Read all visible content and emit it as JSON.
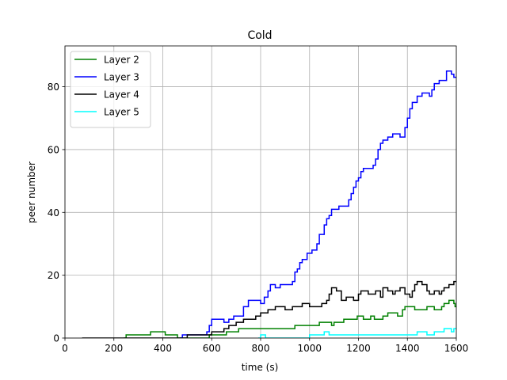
{
  "chart_data": {
    "type": "line",
    "title": "Cold",
    "xlabel": "time (s)",
    "ylabel": "peer number",
    "xlim": [
      0,
      1600
    ],
    "ylim": [
      0,
      93
    ],
    "xticks": [
      0,
      200,
      400,
      600,
      800,
      1000,
      1200,
      1400,
      1600
    ],
    "yticks": [
      0,
      20,
      40,
      60,
      80
    ],
    "grid": true,
    "legend_position": "top-left",
    "series": [
      {
        "name": "Layer 2",
        "color": "#008000",
        "points": [
          [
            240,
            0
          ],
          [
            250,
            1
          ],
          [
            350,
            2
          ],
          [
            410,
            1
          ],
          [
            460,
            0
          ],
          [
            590,
            1
          ],
          [
            660,
            2
          ],
          [
            710,
            3
          ],
          [
            940,
            4
          ],
          [
            1040,
            5
          ],
          [
            1090,
            4
          ],
          [
            1100,
            5
          ],
          [
            1140,
            6
          ],
          [
            1180,
            6
          ],
          [
            1195,
            7
          ],
          [
            1220,
            6
          ],
          [
            1250,
            7
          ],
          [
            1265,
            6
          ],
          [
            1300,
            7
          ],
          [
            1320,
            8
          ],
          [
            1360,
            7
          ],
          [
            1380,
            9
          ],
          [
            1390,
            10
          ],
          [
            1410,
            10
          ],
          [
            1430,
            9
          ],
          [
            1480,
            10
          ],
          [
            1510,
            9
          ],
          [
            1540,
            10
          ],
          [
            1550,
            11
          ],
          [
            1570,
            12
          ],
          [
            1590,
            11
          ],
          [
            1595,
            10
          ]
        ]
      },
      {
        "name": "Layer 3",
        "color": "#0000ff",
        "points": [
          [
            470,
            0
          ],
          [
            480,
            1
          ],
          [
            580,
            2
          ],
          [
            590,
            4
          ],
          [
            600,
            6
          ],
          [
            650,
            5
          ],
          [
            670,
            6
          ],
          [
            690,
            7
          ],
          [
            730,
            10
          ],
          [
            750,
            12
          ],
          [
            800,
            11
          ],
          [
            815,
            13
          ],
          [
            830,
            15
          ],
          [
            840,
            17
          ],
          [
            860,
            16
          ],
          [
            880,
            17
          ],
          [
            920,
            17
          ],
          [
            930,
            18
          ],
          [
            940,
            21
          ],
          [
            950,
            22
          ],
          [
            960,
            24
          ],
          [
            970,
            25
          ],
          [
            990,
            27
          ],
          [
            1010,
            28
          ],
          [
            1030,
            30
          ],
          [
            1040,
            33
          ],
          [
            1060,
            36
          ],
          [
            1070,
            38
          ],
          [
            1080,
            39
          ],
          [
            1090,
            41
          ],
          [
            1120,
            42
          ],
          [
            1160,
            44
          ],
          [
            1170,
            46
          ],
          [
            1180,
            48
          ],
          [
            1190,
            50
          ],
          [
            1200,
            51
          ],
          [
            1210,
            53
          ],
          [
            1220,
            54
          ],
          [
            1240,
            54
          ],
          [
            1260,
            55
          ],
          [
            1270,
            57
          ],
          [
            1280,
            60
          ],
          [
            1290,
            62
          ],
          [
            1300,
            63
          ],
          [
            1320,
            64
          ],
          [
            1340,
            65
          ],
          [
            1370,
            64
          ],
          [
            1390,
            67
          ],
          [
            1400,
            70
          ],
          [
            1410,
            73
          ],
          [
            1420,
            75
          ],
          [
            1440,
            77
          ],
          [
            1460,
            78
          ],
          [
            1490,
            77
          ],
          [
            1500,
            79
          ],
          [
            1510,
            81
          ],
          [
            1530,
            82
          ],
          [
            1560,
            85
          ],
          [
            1580,
            84
          ],
          [
            1590,
            83
          ]
        ]
      },
      {
        "name": "Layer 4",
        "color": "#000000",
        "points": [
          [
            70,
            0
          ],
          [
            500,
            1
          ],
          [
            560,
            1
          ],
          [
            600,
            2
          ],
          [
            630,
            2
          ],
          [
            650,
            3
          ],
          [
            670,
            4
          ],
          [
            700,
            5
          ],
          [
            730,
            6
          ],
          [
            780,
            7
          ],
          [
            800,
            8
          ],
          [
            830,
            9
          ],
          [
            860,
            10
          ],
          [
            900,
            9
          ],
          [
            930,
            10
          ],
          [
            970,
            11
          ],
          [
            1000,
            10
          ],
          [
            1050,
            11
          ],
          [
            1070,
            12
          ],
          [
            1080,
            14
          ],
          [
            1090,
            16
          ],
          [
            1110,
            15
          ],
          [
            1130,
            12
          ],
          [
            1150,
            13
          ],
          [
            1180,
            12
          ],
          [
            1200,
            14
          ],
          [
            1210,
            15
          ],
          [
            1240,
            14
          ],
          [
            1270,
            15
          ],
          [
            1290,
            13
          ],
          [
            1300,
            16
          ],
          [
            1320,
            15
          ],
          [
            1340,
            14
          ],
          [
            1350,
            15
          ],
          [
            1370,
            16
          ],
          [
            1390,
            14
          ],
          [
            1410,
            13
          ],
          [
            1420,
            15
          ],
          [
            1430,
            17
          ],
          [
            1440,
            18
          ],
          [
            1460,
            17
          ],
          [
            1480,
            15
          ],
          [
            1490,
            14
          ],
          [
            1510,
            15
          ],
          [
            1530,
            14
          ],
          [
            1540,
            15
          ],
          [
            1550,
            16
          ],
          [
            1570,
            17
          ],
          [
            1590,
            18
          ]
        ]
      },
      {
        "name": "Layer 5",
        "color": "#00ffff",
        "points": [
          [
            790,
            0
          ],
          [
            800,
            1
          ],
          [
            820,
            0
          ],
          [
            990,
            0
          ],
          [
            1000,
            1
          ],
          [
            1060,
            2
          ],
          [
            1080,
            1
          ],
          [
            1430,
            1
          ],
          [
            1440,
            2
          ],
          [
            1480,
            1
          ],
          [
            1510,
            2
          ],
          [
            1550,
            3
          ],
          [
            1580,
            2
          ],
          [
            1590,
            3
          ]
        ]
      }
    ]
  }
}
